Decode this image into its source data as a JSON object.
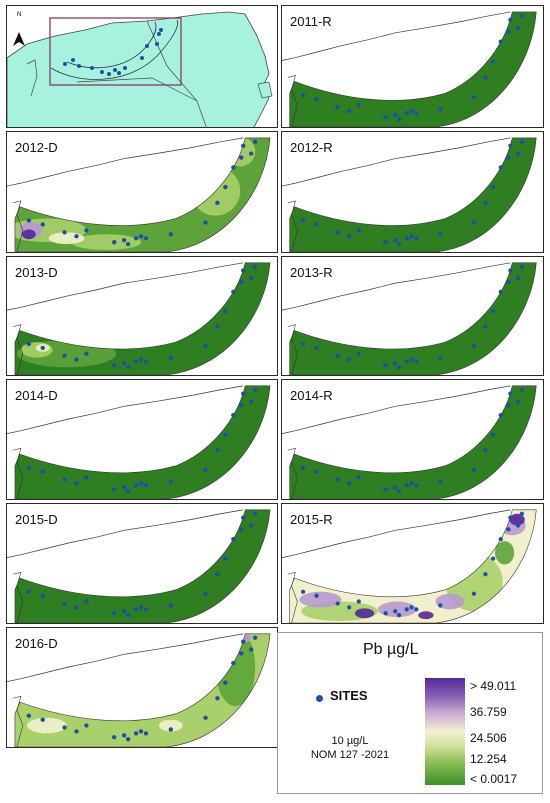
{
  "panels": [
    {
      "id": "overview",
      "label": ""
    },
    {
      "id": "p2011r",
      "label": "2011-R"
    },
    {
      "id": "p2012d",
      "label": "2012-D"
    },
    {
      "id": "p2012r",
      "label": "2012-R"
    },
    {
      "id": "p2013d",
      "label": "2013-D"
    },
    {
      "id": "p2013r",
      "label": "2013-R"
    },
    {
      "id": "p2014d",
      "label": "2014-D"
    },
    {
      "id": "p2014r",
      "label": "2014-R"
    },
    {
      "id": "p2015d",
      "label": "2015-D"
    },
    {
      "id": "p2015r",
      "label": "2015-R"
    },
    {
      "id": "p2016d",
      "label": "2016-D"
    }
  ],
  "north_label": "N",
  "legend": {
    "title": "Pb µg/L",
    "sites_label": "SITES",
    "note_line1": "10 µg/L",
    "note_line2": "NOM 127 -2021",
    "ticks": [
      "> 49.011",
      "36.759",
      "24.506",
      "12.254",
      "< 0.0017"
    ]
  },
  "colors": {
    "very_low": "#2f7f22",
    "low": "#5da33a",
    "mid_low": "#a9cf6a",
    "mid": "#f2f0cc",
    "high": "#b79ad0",
    "very_high": "#55279a",
    "site": "#1f4ea8",
    "land": "#a7f2df"
  }
}
